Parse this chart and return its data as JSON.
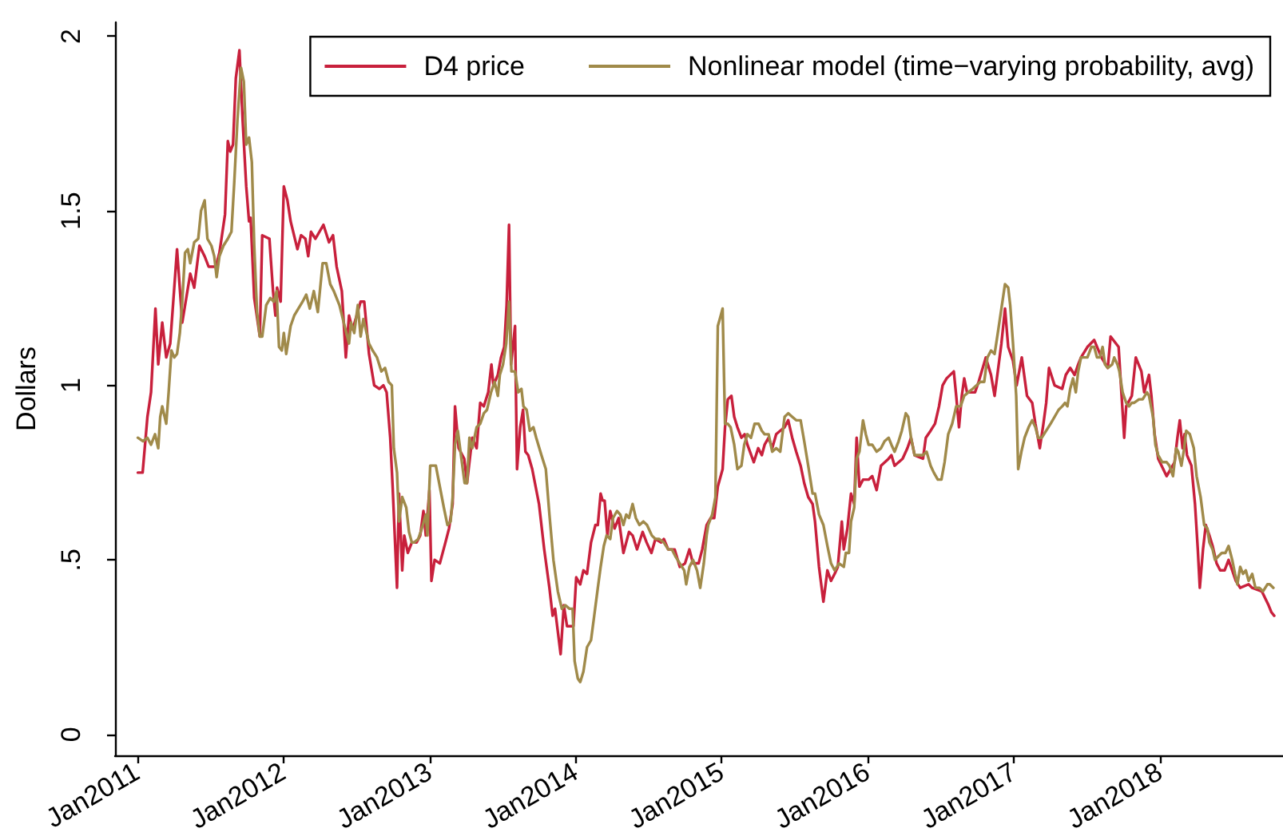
{
  "chart_data": {
    "type": "line",
    "ylabel": "Dollars",
    "legend": "top right",
    "xlim": [
      "2010-11-07",
      "2018-11-05"
    ],
    "xticks": [
      {
        "value": "2011-01",
        "label": "Jan2011"
      },
      {
        "value": "2012-01",
        "label": "Jan2012"
      },
      {
        "value": "2013-01",
        "label": "Jan2013"
      },
      {
        "value": "2014-01",
        "label": "Jan2014"
      },
      {
        "value": "2015-01",
        "label": "Jan2015"
      },
      {
        "value": "2016-01",
        "label": "Jan2016"
      },
      {
        "value": "2017-01",
        "label": "Jan2017"
      },
      {
        "value": "2018-01",
        "label": "Jan2018"
      }
    ],
    "ylim": [
      -0.06,
      2.04
    ],
    "yticks": [
      0,
      {
        "value": 0.5,
        "label": ".5"
      },
      1,
      1.5,
      2
    ],
    "series": [
      {
        "name": "D4 price",
        "color": "#c8203c",
        "x": [
          "2011-01-03",
          "2011-01-15",
          "2011-01-27",
          "2011-02-05",
          "2011-02-16",
          "2011-02-23",
          "2011-03-05",
          "2011-03-15",
          "2011-03-25",
          "2011-04-11",
          "2011-04-24",
          "2011-05-14",
          "2011-05-24",
          "2011-06-06",
          "2011-06-19",
          "2011-06-29",
          "2011-07-17",
          "2011-07-26",
          "2011-08-09",
          "2011-08-16",
          "2011-08-22",
          "2011-08-29",
          "2011-09-05",
          "2011-09-14",
          "2011-09-22",
          "2011-10-01",
          "2011-10-08",
          "2011-10-12",
          "2011-10-21",
          "2011-11-04",
          "2011-11-10",
          "2011-11-28",
          "2011-12-07",
          "2011-12-13",
          "2011-12-17",
          "2011-12-26",
          "2012-01-03",
          "2012-01-12",
          "2012-01-20",
          "2012-02-06",
          "2012-02-15",
          "2012-02-26",
          "2012-03-04",
          "2012-03-11",
          "2012-03-22",
          "2012-04-11",
          "2012-04-25",
          "2012-05-05",
          "2012-05-14",
          "2012-05-27",
          "2012-06-06",
          "2012-06-14",
          "2012-06-23",
          "2012-07-13",
          "2012-07-22",
          "2012-08-03",
          "2012-08-16",
          "2012-08-29",
          "2012-09-08",
          "2012-09-16",
          "2012-09-25",
          "2012-10-01",
          "2012-10-12",
          "2012-10-17",
          "2012-10-25",
          "2012-10-30",
          "2012-11-08",
          "2012-11-18",
          "2012-11-30",
          "2012-12-09",
          "2012-12-17",
          "2012-12-23",
          "2013-01-01",
          "2013-01-06",
          "2013-01-14",
          "2013-01-27",
          "2013-02-10",
          "2013-02-19",
          "2013-02-28",
          "2013-03-06",
          "2013-03-15",
          "2013-03-29",
          "2013-04-05",
          "2013-04-18",
          "2013-04-29",
          "2013-05-08",
          "2013-05-17",
          "2013-05-28",
          "2013-06-05",
          "2013-06-10",
          "2013-06-21",
          "2013-06-29",
          "2013-07-07",
          "2013-07-13",
          "2013-07-19",
          "2013-07-24",
          "2013-08-03",
          "2013-08-08",
          "2013-08-16",
          "2013-08-23",
          "2013-08-29",
          "2013-09-05",
          "2013-09-15",
          "2013-10-02",
          "2013-10-15",
          "2013-10-28",
          "2013-11-05",
          "2013-11-11",
          "2013-11-25",
          "2013-12-03",
          "2013-12-11",
          "2013-12-27",
          "2014-01-03",
          "2014-01-13",
          "2014-01-21",
          "2014-01-30",
          "2014-02-09",
          "2014-02-20",
          "2014-02-26",
          "2014-03-05",
          "2014-03-10",
          "2014-03-15",
          "2014-03-22",
          "2014-03-29",
          "2014-04-09",
          "2014-04-19",
          "2014-05-01",
          "2014-05-15",
          "2014-05-24",
          "2014-06-04",
          "2014-06-18",
          "2014-06-28",
          "2014-07-10",
          "2014-07-20",
          "2014-08-03",
          "2014-08-10",
          "2014-08-21",
          "2014-09-06",
          "2014-09-19",
          "2014-10-02",
          "2014-10-13",
          "2014-10-22",
          "2014-11-05",
          "2014-11-14",
          "2014-11-25",
          "2014-12-05",
          "2014-12-14",
          "2014-12-23",
          "2015-01-04",
          "2015-01-10",
          "2015-01-17",
          "2015-01-26",
          "2015-02-02",
          "2015-02-10",
          "2015-02-20",
          "2015-02-28",
          "2015-03-07",
          "2015-03-23",
          "2015-04-03",
          "2015-04-12",
          "2015-04-19",
          "2015-04-29",
          "2015-05-08",
          "2015-05-18",
          "2015-05-28",
          "2015-06-08",
          "2015-06-17",
          "2015-06-27",
          "2015-07-07",
          "2015-07-18",
          "2015-07-27",
          "2015-08-06",
          "2015-08-17",
          "2015-08-23",
          "2015-09-02",
          "2015-09-13",
          "2015-09-23",
          "2015-10-02",
          "2015-10-11",
          "2015-10-19",
          "2015-10-29",
          "2015-11-03",
          "2015-11-12",
          "2015-11-21",
          "2015-11-29",
          "2015-12-05",
          "2015-12-12",
          "2015-12-21",
          "2016-01-04",
          "2016-01-13",
          "2016-01-24",
          "2016-02-04",
          "2016-02-23",
          "2016-03-01",
          "2016-03-09",
          "2016-03-29",
          "2016-04-10",
          "2016-04-19",
          "2016-04-28",
          "2016-05-19",
          "2016-05-26",
          "2016-06-07",
          "2016-06-18",
          "2016-06-28",
          "2016-07-07",
          "2016-07-17",
          "2016-08-04",
          "2016-08-10",
          "2016-08-17",
          "2016-08-24",
          "2016-08-30",
          "2016-09-06",
          "2016-09-26",
          "2016-10-05",
          "2016-10-23",
          "2016-11-05",
          "2016-11-14",
          "2016-11-22",
          "2016-12-01",
          "2016-12-10",
          "2016-12-18",
          "2016-12-30",
          "2017-01-08",
          "2017-01-21",
          "2017-02-03",
          "2017-02-16",
          "2017-02-24",
          "2017-03-07",
          "2017-03-16",
          "2017-03-23",
          "2017-03-30",
          "2017-04-13",
          "2017-05-02",
          "2017-05-11",
          "2017-05-22",
          "2017-06-02",
          "2017-06-11",
          "2017-06-18",
          "2017-07-04",
          "2017-07-21",
          "2017-08-08",
          "2017-08-24",
          "2017-08-31",
          "2017-09-20",
          "2017-10-04",
          "2017-10-09",
          "2017-10-23",
          "2017-11-02",
          "2017-11-16",
          "2017-11-23",
          "2017-12-05",
          "2017-12-11",
          "2017-12-19",
          "2017-12-28",
          "2018-01-18",
          "2018-02-07",
          "2018-02-14",
          "2018-02-20",
          "2018-02-27",
          "2018-03-04",
          "2018-03-10",
          "2018-03-21",
          "2018-03-30",
          "2018-04-06",
          "2018-04-11",
          "2018-04-19",
          "2018-04-26",
          "2018-05-05",
          "2018-05-13",
          "2018-05-23",
          "2018-06-01",
          "2018-06-12",
          "2018-06-22",
          "2018-07-01",
          "2018-07-10",
          "2018-07-21",
          "2018-08-11",
          "2018-08-20",
          "2018-09-13",
          "2018-09-30",
          "2018-10-07",
          "2018-10-14"
        ],
        "values": [
          0.75,
          0.75,
          0.91,
          0.98,
          1.22,
          1.06,
          1.18,
          1.08,
          1.12,
          1.39,
          1.18,
          1.32,
          1.28,
          1.4,
          1.37,
          1.34,
          1.34,
          1.38,
          1.49,
          1.7,
          1.67,
          1.69,
          1.88,
          1.96,
          1.76,
          1.57,
          1.47,
          1.48,
          1.25,
          1.14,
          1.43,
          1.42,
          1.27,
          1.2,
          1.28,
          1.24,
          1.57,
          1.53,
          1.47,
          1.39,
          1.43,
          1.42,
          1.37,
          1.44,
          1.42,
          1.46,
          1.41,
          1.43,
          1.34,
          1.27,
          1.08,
          1.2,
          1.16,
          1.24,
          1.24,
          1.09,
          1.0,
          0.99,
          1.0,
          0.98,
          0.85,
          0.71,
          0.42,
          0.69,
          0.47,
          0.57,
          0.52,
          0.55,
          0.55,
          0.57,
          0.64,
          0.57,
          0.7,
          0.44,
          0.5,
          0.49,
          0.55,
          0.59,
          0.66,
          0.94,
          0.82,
          0.79,
          0.72,
          0.85,
          0.82,
          0.95,
          0.94,
          0.98,
          1.06,
          1.0,
          1.03,
          1.08,
          1.11,
          1.23,
          1.46,
          1.06,
          1.17,
          0.76,
          0.88,
          0.93,
          0.81,
          0.8,
          0.76,
          0.66,
          0.53,
          0.42,
          0.34,
          0.36,
          0.23,
          0.37,
          0.31,
          0.31,
          0.45,
          0.43,
          0.47,
          0.46,
          0.55,
          0.6,
          0.6,
          0.69,
          0.67,
          0.67,
          0.57,
          0.64,
          0.59,
          0.62,
          0.52,
          0.58,
          0.57,
          0.53,
          0.58,
          0.55,
          0.52,
          0.56,
          0.55,
          0.56,
          0.53,
          0.53,
          0.48,
          0.49,
          0.53,
          0.49,
          0.49,
          0.53,
          0.6,
          0.62,
          0.62,
          0.71,
          0.76,
          0.88,
          0.96,
          0.97,
          0.91,
          0.88,
          0.85,
          0.86,
          0.83,
          0.78,
          0.82,
          0.8,
          0.83,
          0.85,
          0.82,
          0.86,
          0.87,
          0.88,
          0.9,
          0.85,
          0.81,
          0.77,
          0.72,
          0.68,
          0.66,
          0.61,
          0.48,
          0.38,
          0.47,
          0.44,
          0.46,
          0.48,
          0.61,
          0.53,
          0.59,
          0.69,
          0.66,
          0.85,
          0.71,
          0.73,
          0.73,
          0.74,
          0.7,
          0.77,
          0.79,
          0.8,
          0.77,
          0.79,
          0.82,
          0.85,
          0.8,
          0.79,
          0.85,
          0.87,
          0.89,
          0.94,
          1.0,
          1.02,
          1.04,
          0.97,
          0.88,
          0.97,
          1.02,
          0.98,
          0.98,
          1.01,
          1.08,
          1.03,
          0.97,
          1.04,
          1.12,
          1.22,
          1.11,
          1.07,
          1.0,
          1.08,
          0.97,
          0.95,
          0.89,
          0.82,
          0.89,
          0.95,
          1.05,
          1.0,
          0.99,
          1.03,
          1.05,
          1.03,
          1.06,
          1.08,
          1.11,
          1.13,
          1.08,
          1.05,
          1.14,
          1.11,
          0.85,
          0.94,
          0.97,
          1.08,
          1.04,
          0.98,
          1.03,
          0.97,
          0.86,
          0.79,
          0.74,
          0.78,
          0.85,
          0.9,
          0.82,
          0.86,
          0.8,
          0.77,
          0.66,
          0.53,
          0.42,
          0.53,
          0.6,
          0.57,
          0.54,
          0.49,
          0.47,
          0.47,
          0.5,
          0.47,
          0.44,
          0.42,
          0.43,
          0.42,
          0.41,
          0.37,
          0.35,
          0.34
        ]
      },
      {
        "name": "Nonlinear model (time−varying probability, avg)",
        "color": "#a08a4a",
        "x": [
          "2011-01-03",
          "2011-01-16",
          "2011-01-27",
          "2011-02-05",
          "2011-02-15",
          "2011-02-23",
          "2011-02-28",
          "2011-03-05",
          "2011-03-15",
          "2011-03-21",
          "2011-03-28",
          "2011-04-04",
          "2011-04-11",
          "2011-04-18",
          "2011-04-24",
          "2011-05-01",
          "2011-05-08",
          "2011-05-14",
          "2011-05-24",
          "2011-06-03",
          "2011-06-10",
          "2011-06-19",
          "2011-06-26",
          "2011-07-06",
          "2011-07-13",
          "2011-07-19",
          "2011-07-26",
          "2011-08-05",
          "2011-08-16",
          "2011-08-25",
          "2011-09-01",
          "2011-09-09",
          "2011-09-18",
          "2011-09-25",
          "2011-10-01",
          "2011-10-08",
          "2011-10-15",
          "2011-10-21",
          "2011-10-28",
          "2011-11-04",
          "2011-11-10",
          "2011-11-20",
          "2011-11-30",
          "2011-12-09",
          "2011-12-16",
          "2011-12-22",
          "2011-12-29",
          "2012-01-03",
          "2012-01-09",
          "2012-01-20",
          "2012-01-29",
          "2012-02-19",
          "2012-02-28",
          "2012-03-08",
          "2012-03-18",
          "2012-03-28",
          "2012-04-09",
          "2012-04-18",
          "2012-04-28",
          "2012-05-07",
          "2012-05-21",
          "2012-06-03",
          "2012-06-14",
          "2012-06-19",
          "2012-06-27",
          "2012-07-06",
          "2012-07-13",
          "2012-07-20",
          "2012-08-03",
          "2012-08-12",
          "2012-08-23",
          "2012-09-03",
          "2012-09-12",
          "2012-09-21",
          "2012-09-29",
          "2012-10-04",
          "2012-10-12",
          "2012-10-17",
          "2012-10-25",
          "2012-11-04",
          "2012-11-11",
          "2012-11-18",
          "2012-11-24",
          "2012-12-04",
          "2012-12-13",
          "2012-12-23",
          "2012-12-27",
          "2013-01-03",
          "2013-01-17",
          "2013-01-27",
          "2013-02-06",
          "2013-02-15",
          "2013-02-23",
          "2013-02-28",
          "2013-03-06",
          "2013-03-13",
          "2013-03-22",
          "2013-03-30",
          "2013-04-05",
          "2013-04-11",
          "2013-04-18",
          "2013-04-29",
          "2013-05-08",
          "2013-05-17",
          "2013-05-25",
          "2013-06-04",
          "2013-06-13",
          "2013-06-21",
          "2013-06-26",
          "2013-07-04",
          "2013-07-12",
          "2013-07-19",
          "2013-07-25",
          "2013-08-03",
          "2013-08-11",
          "2013-08-19",
          "2013-08-24",
          "2013-09-01",
          "2013-09-09",
          "2013-09-18",
          "2013-09-25",
          "2013-10-08",
          "2013-10-19",
          "2013-10-28",
          "2013-11-07",
          "2013-11-18",
          "2013-11-28",
          "2013-12-07",
          "2013-12-17",
          "2013-12-25",
          "2013-12-30",
          "2014-01-07",
          "2014-01-13",
          "2014-01-21",
          "2014-01-30",
          "2014-02-09",
          "2014-02-17",
          "2014-02-26",
          "2014-03-05",
          "2014-03-13",
          "2014-03-20",
          "2014-03-29",
          "2014-04-05",
          "2014-04-15",
          "2014-04-23",
          "2014-05-01",
          "2014-05-08",
          "2014-05-15",
          "2014-05-24",
          "2014-06-01",
          "2014-06-10",
          "2014-06-20",
          "2014-06-29",
          "2014-07-11",
          "2014-07-20",
          "2014-07-29",
          "2014-08-10",
          "2014-08-21",
          "2014-08-30",
          "2014-09-08",
          "2014-09-19",
          "2014-09-30",
          "2014-10-05",
          "2014-10-13",
          "2014-10-22",
          "2014-11-01",
          "2014-11-09",
          "2014-11-18",
          "2014-11-25",
          "2014-11-29",
          "2014-12-09",
          "2014-12-17",
          "2014-12-23",
          "2014-12-28",
          "2015-01-04",
          "2015-01-10",
          "2015-01-17",
          "2015-01-24",
          "2015-02-02",
          "2015-02-10",
          "2015-02-20",
          "2015-02-27",
          "2015-03-07",
          "2015-03-16",
          "2015-03-25",
          "2015-04-04",
          "2015-04-12",
          "2015-04-19",
          "2015-04-29",
          "2015-05-08",
          "2015-05-18",
          "2015-05-28",
          "2015-06-08",
          "2015-06-17",
          "2015-06-27",
          "2015-07-07",
          "2015-07-18",
          "2015-07-27",
          "2015-08-06",
          "2015-08-17",
          "2015-08-23",
          "2015-09-02",
          "2015-09-13",
          "2015-09-23",
          "2015-10-02",
          "2015-10-11",
          "2015-10-22",
          "2015-11-03",
          "2015-11-08",
          "2015-11-16",
          "2015-11-21",
          "2015-11-29",
          "2015-12-05",
          "2015-12-12",
          "2015-12-21",
          "2015-12-28",
          "2016-01-04",
          "2016-01-13",
          "2016-01-24",
          "2016-02-04",
          "2016-02-13",
          "2016-02-23",
          "2016-03-01",
          "2016-03-09",
          "2016-03-19",
          "2016-03-27",
          "2016-04-06",
          "2016-04-12",
          "2016-04-19",
          "2016-04-28",
          "2016-05-09",
          "2016-05-19",
          "2016-05-28",
          "2016-06-07",
          "2016-06-15",
          "2016-06-25",
          "2016-07-04",
          "2016-07-12",
          "2016-07-21",
          "2016-07-31",
          "2016-08-10",
          "2016-08-21",
          "2016-08-30",
          "2016-09-09",
          "2016-09-20",
          "2016-09-30",
          "2016-10-09",
          "2016-10-19",
          "2016-10-27",
          "2016-11-05",
          "2016-11-14",
          "2016-11-22",
          "2016-12-01",
          "2016-12-10",
          "2016-12-18",
          "2016-12-23",
          "2016-12-30",
          "2017-01-07",
          "2017-01-12",
          "2017-01-20",
          "2017-01-28",
          "2017-02-07",
          "2017-02-16",
          "2017-02-24",
          "2017-03-03",
          "2017-03-12",
          "2017-03-23",
          "2017-04-03",
          "2017-04-13",
          "2017-04-23",
          "2017-05-02",
          "2017-05-09",
          "2017-05-15",
          "2017-05-22",
          "2017-05-29",
          "2017-06-05",
          "2017-06-11",
          "2017-06-18",
          "2017-06-25",
          "2017-07-04",
          "2017-07-14",
          "2017-07-21",
          "2017-07-28",
          "2017-08-04",
          "2017-08-11",
          "2017-08-17",
          "2017-08-24",
          "2017-09-04",
          "2017-09-09",
          "2017-09-17",
          "2017-09-22",
          "2017-09-30",
          "2017-10-09",
          "2017-10-16",
          "2017-10-23",
          "2017-10-29",
          "2017-11-10",
          "2017-11-19",
          "2017-11-30",
          "2017-12-05",
          "2017-12-15",
          "2017-12-21",
          "2017-12-28",
          "2018-01-07",
          "2018-01-18",
          "2018-01-25",
          "2018-02-03",
          "2018-02-11",
          "2018-02-16",
          "2018-02-24",
          "2018-03-03",
          "2018-03-08",
          "2018-03-17",
          "2018-03-27",
          "2018-04-03",
          "2018-04-13",
          "2018-04-22",
          "2018-04-30",
          "2018-05-05",
          "2018-05-13",
          "2018-05-19",
          "2018-05-27",
          "2018-06-05",
          "2018-06-14",
          "2018-06-22",
          "2018-07-01",
          "2018-07-08",
          "2018-07-14",
          "2018-07-21",
          "2018-07-28",
          "2018-08-04",
          "2018-08-11",
          "2018-08-20",
          "2018-08-28",
          "2018-09-07",
          "2018-09-16",
          "2018-09-27",
          "2018-10-03",
          "2018-10-12"
        ],
        "values": [
          0.85,
          0.84,
          0.85,
          0.83,
          0.86,
          0.82,
          0.91,
          0.94,
          0.89,
          0.98,
          1.1,
          1.08,
          1.09,
          1.15,
          1.24,
          1.38,
          1.39,
          1.35,
          1.41,
          1.42,
          1.5,
          1.53,
          1.42,
          1.4,
          1.37,
          1.31,
          1.37,
          1.4,
          1.42,
          1.44,
          1.58,
          1.76,
          1.91,
          1.87,
          1.69,
          1.71,
          1.64,
          1.4,
          1.21,
          1.14,
          1.14,
          1.23,
          1.25,
          1.24,
          1.27,
          1.11,
          1.1,
          1.15,
          1.09,
          1.17,
          1.2,
          1.24,
          1.26,
          1.22,
          1.27,
          1.21,
          1.35,
          1.35,
          1.29,
          1.27,
          1.23,
          1.17,
          1.12,
          1.18,
          1.15,
          1.23,
          1.14,
          1.19,
          1.12,
          1.1,
          1.08,
          1.04,
          1.05,
          1.01,
          1.0,
          0.82,
          0.75,
          0.61,
          0.68,
          0.65,
          0.58,
          0.55,
          0.55,
          0.56,
          0.59,
          0.63,
          0.57,
          0.77,
          0.77,
          0.71,
          0.65,
          0.6,
          0.61,
          0.68,
          0.83,
          0.87,
          0.79,
          0.72,
          0.72,
          0.85,
          0.82,
          0.88,
          0.89,
          0.92,
          0.93,
          0.98,
          1.01,
          0.97,
          1.03,
          1.06,
          1.12,
          1.24,
          1.04,
          1.04,
          0.98,
          0.99,
          0.94,
          0.93,
          0.87,
          0.88,
          0.85,
          0.8,
          0.76,
          0.63,
          0.5,
          0.41,
          0.36,
          0.37,
          0.36,
          0.36,
          0.21,
          0.16,
          0.15,
          0.18,
          0.25,
          0.27,
          0.34,
          0.42,
          0.48,
          0.54,
          0.57,
          0.56,
          0.62,
          0.64,
          0.63,
          0.6,
          0.63,
          0.62,
          0.66,
          0.62,
          0.6,
          0.61,
          0.6,
          0.57,
          0.56,
          0.56,
          0.55,
          0.53,
          0.53,
          0.51,
          0.49,
          0.47,
          0.43,
          0.48,
          0.5,
          0.47,
          0.42,
          0.49,
          0.57,
          0.6,
          0.63,
          0.68,
          1.17,
          1.19,
          1.22,
          0.89,
          0.89,
          0.88,
          0.83,
          0.76,
          0.77,
          0.83,
          0.86,
          0.85,
          0.89,
          0.89,
          0.87,
          0.86,
          0.86,
          0.81,
          0.82,
          0.81,
          0.91,
          0.92,
          0.91,
          0.9,
          0.9,
          0.84,
          0.77,
          0.69,
          0.69,
          0.63,
          0.6,
          0.54,
          0.49,
          0.47,
          0.49,
          0.48,
          0.52,
          0.52,
          0.61,
          0.65,
          0.79,
          0.81,
          0.9,
          0.86,
          0.83,
          0.83,
          0.81,
          0.82,
          0.84,
          0.85,
          0.83,
          0.81,
          0.84,
          0.87,
          0.92,
          0.91,
          0.85,
          0.8,
          0.8,
          0.8,
          0.81,
          0.77,
          0.75,
          0.73,
          0.73,
          0.78,
          0.86,
          0.89,
          0.94,
          0.94,
          0.97,
          0.98,
          0.99,
          1.0,
          1.01,
          1.01,
          1.08,
          1.1,
          1.09,
          1.15,
          1.22,
          1.29,
          1.28,
          1.23,
          1.12,
          0.97,
          0.76,
          0.81,
          0.85,
          0.88,
          0.9,
          0.88,
          0.85,
          0.85,
          0.87,
          0.89,
          0.91,
          0.93,
          0.94,
          0.95,
          0.94,
          0.99,
          1.02,
          0.98,
          1.04,
          1.08,
          1.08,
          1.08,
          1.11,
          1.11,
          1.08,
          1.08,
          1.11,
          1.06,
          1.05,
          1.06,
          1.08,
          1.06,
          1.04,
          0.98,
          0.95,
          0.94,
          0.95,
          0.95,
          0.96,
          0.96,
          0.98,
          0.97,
          0.91,
          0.83,
          0.8,
          0.78,
          0.78,
          0.77,
          0.74,
          0.82,
          0.81,
          0.77,
          0.82,
          0.87,
          0.86,
          0.82,
          0.74,
          0.68,
          0.6,
          0.59,
          0.55,
          0.53,
          0.5,
          0.51,
          0.52,
          0.52,
          0.54,
          0.5,
          0.46,
          0.43,
          0.48,
          0.46,
          0.47,
          0.44,
          0.46,
          0.42,
          0.42,
          0.41,
          0.43,
          0.43,
          0.42
        ]
      }
    ]
  }
}
